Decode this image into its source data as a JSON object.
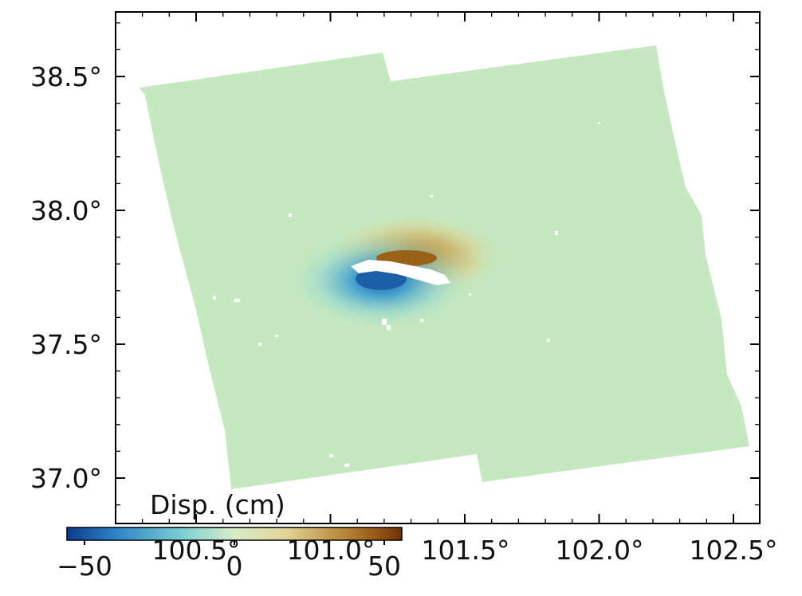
{
  "map": {
    "axes": {
      "x_ticks": [
        "100.5°",
        "101.0°",
        "101.5°",
        "102.0°",
        "102.5°"
      ],
      "y_ticks": [
        "38.5°",
        "38.0°",
        "37.5°",
        "37.0°"
      ]
    },
    "colorbar": {
      "title": "Disp. (cm)",
      "tick_labels": [
        "−50",
        "0",
        "50"
      ],
      "colors": [
        "#0b3b8c",
        "#2f86c8",
        "#7fd1d3",
        "#cfe9c4",
        "#e8e0a0",
        "#c9a24a",
        "#a86a1a",
        "#7a3208"
      ]
    },
    "colors": {
      "background_field": "#c6e8c0",
      "positive_lobe": "#a86c1e",
      "negative_lobe": "#1f6fb8"
    }
  }
}
